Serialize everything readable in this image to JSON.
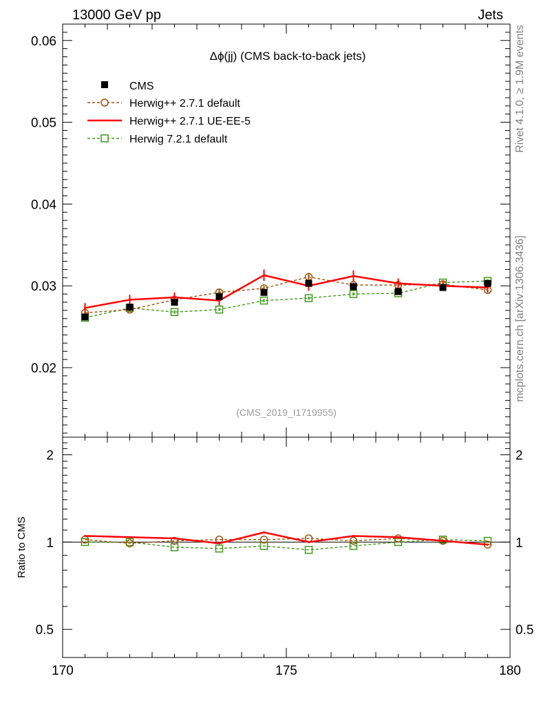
{
  "header": {
    "left": "13000 GeV pp",
    "right": "Jets"
  },
  "side_labels": {
    "rivet": "Rivet 4.1.0, ≥ 1.9M events",
    "mcplots": "mcplots.cern.ch [arXiv:1306.3436]"
  },
  "colors": {
    "cms": "#000000",
    "herwigpp_default": "#a0520a",
    "herwigpp_ueee5": "#ff0000",
    "herwig7_default": "#3c9a14"
  },
  "chart_data": [
    {
      "type": "line",
      "panel": "main",
      "title": "Δϕ(jj) (CMS back-to-back jets)",
      "watermark": "(CMS_2019_I1719955)",
      "xlabel": "",
      "ylabel": "",
      "xlim": [
        170,
        180
      ],
      "ylim": [
        0.0115,
        0.062
      ],
      "yticks": [
        0.02,
        0.03,
        0.04,
        0.05,
        0.06
      ],
      "ytick_labels": [
        "0.02",
        "0.03",
        "0.04",
        "0.05",
        "0.06"
      ],
      "legend_position": "top-left",
      "x": [
        170.5,
        171.5,
        172.5,
        173.5,
        174.5,
        175.5,
        176.5,
        177.5,
        178.5,
        179.5
      ],
      "series": [
        {
          "name": "CMS",
          "style": "markers",
          "marker": "filled-square",
          "color": "#000000",
          "values": [
            0.0262,
            0.0274,
            0.028,
            0.0287,
            0.0292,
            0.0303,
            0.0299,
            0.0293,
            0.0298,
            0.0303
          ],
          "errors": [
            0.0003,
            0.0003,
            0.0003,
            0.0003,
            0.0003,
            0.0003,
            0.0003,
            0.0003,
            0.0003,
            0.0003
          ]
        },
        {
          "name": "Herwig++ 2.7.1 default",
          "style": "dashed",
          "marker": "open-circle",
          "color": "#a0520a",
          "values": [
            0.0267,
            0.0271,
            0.0283,
            0.0292,
            0.0297,
            0.0311,
            0.0301,
            0.0301,
            0.0302,
            0.0295
          ],
          "errors": [
            0.0003,
            0.0003,
            0.0003,
            0.0004,
            0.0003,
            0.0004,
            0.0003,
            0.0003,
            0.0003,
            0.0003
          ]
        },
        {
          "name": "Herwig++ 2.7.1 UE-EE-5",
          "style": "solid",
          "marker": "none",
          "color": "#ff0000",
          "values": [
            0.0273,
            0.0283,
            0.0286,
            0.0282,
            0.0313,
            0.03,
            0.0312,
            0.0303,
            0.03,
            0.0298
          ],
          "errors": [
            0.0006,
            0.0006,
            0.0006,
            0.0006,
            0.0007,
            0.0006,
            0.0007,
            0.0006,
            0.0006,
            0.0006
          ]
        },
        {
          "name": "Herwig 7.2.1 default",
          "style": "dashed",
          "marker": "open-square",
          "color": "#3c9a14",
          "values": [
            0.0261,
            0.0273,
            0.0268,
            0.0271,
            0.0282,
            0.0285,
            0.029,
            0.0291,
            0.0304,
            0.0306
          ],
          "errors": [
            0.0002,
            0.0002,
            0.0002,
            0.0002,
            0.0002,
            0.0002,
            0.0002,
            0.0002,
            0.0002,
            0.0002
          ]
        }
      ]
    },
    {
      "type": "line",
      "panel": "ratio",
      "ylabel": "Ratio to CMS",
      "xlabel": "",
      "xlim": [
        170,
        180
      ],
      "ylim": [
        0.4,
        2.3
      ],
      "yscale": "log",
      "yticks": [
        0.5,
        1,
        2
      ],
      "ytick_labels": [
        "0.5",
        "1",
        "2"
      ],
      "xticks": [
        170,
        175,
        180
      ],
      "xtick_labels": [
        "170",
        "175",
        "180"
      ],
      "x": [
        170.5,
        171.5,
        172.5,
        173.5,
        174.5,
        175.5,
        176.5,
        177.5,
        178.5,
        179.5
      ],
      "series": [
        {
          "name": "Herwig++ 2.7.1 default",
          "style": "dashed",
          "marker": "open-circle",
          "color": "#a0520a",
          "values": [
            1.02,
            0.99,
            1.01,
            1.02,
            1.02,
            1.03,
            1.01,
            1.03,
            1.01,
            0.98
          ]
        },
        {
          "name": "Herwig++ 2.7.1 UE-EE-5",
          "style": "solid",
          "marker": "none",
          "color": "#ff0000",
          "values": [
            1.05,
            1.04,
            1.03,
            0.99,
            1.08,
            1.0,
            1.05,
            1.04,
            1.01,
            0.98
          ]
        },
        {
          "name": "Herwig 7.2.1 default",
          "style": "dashed",
          "marker": "open-square",
          "color": "#3c9a14",
          "values": [
            1.0,
            1.0,
            0.96,
            0.95,
            0.97,
            0.94,
            0.97,
            1.0,
            1.02,
            1.01
          ]
        }
      ]
    }
  ]
}
